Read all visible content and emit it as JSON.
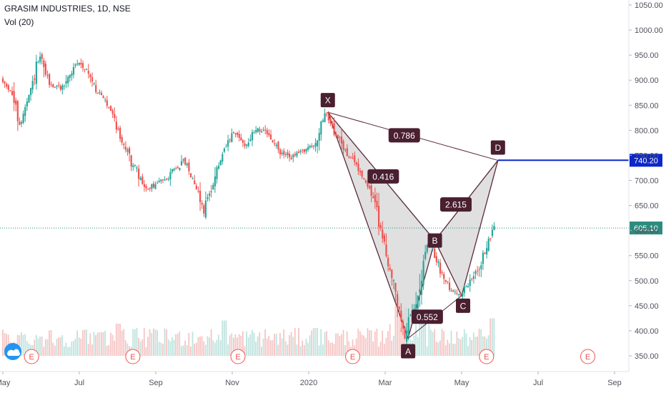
{
  "header": {
    "symbol": "GRASIM INDUSTRIES, 1D, NSE",
    "indicator": "Vol (20)"
  },
  "colors": {
    "up": "#26a69a",
    "down": "#ef5350",
    "pattern_fill": "#d6d6d6",
    "pattern_line": "#5b2a3a",
    "label_bg": "#4a1f30",
    "target_line": "#0d27c9",
    "price_line": "#2a8c7f",
    "earnings": "#ef5350"
  },
  "chart_data": {
    "type": "candlestick",
    "title": "GRASIM INDUSTRIES, 1D, NSE",
    "ylim": [
      325,
      1070
    ],
    "y_ticks": [
      "1050.00",
      "1000.00",
      "950.00",
      "900.00",
      "850.00",
      "800.00",
      "750.00",
      "700.00",
      "650.00",
      "600.00",
      "550.00",
      "500.00",
      "450.00",
      "400.00",
      "350.00"
    ],
    "x_ticks": [
      {
        "label": "May",
        "t": 0.0
      },
      {
        "label": "Jul",
        "t": 2.0
      },
      {
        "label": "Sep",
        "t": 4.0
      },
      {
        "label": "Nov",
        "t": 6.0
      },
      {
        "label": "2020",
        "t": 8.0
      },
      {
        "label": "Mar",
        "t": 10.0
      },
      {
        "label": "May",
        "t": 12.0
      },
      {
        "label": "Jul",
        "t": 14.0
      },
      {
        "label": "Sep",
        "t": 16.0
      }
    ],
    "price_path": [
      [
        0.0,
        900
      ],
      [
        0.25,
        880
      ],
      [
        0.5,
        810
      ],
      [
        0.75,
        870
      ],
      [
        1.0,
        945
      ],
      [
        1.3,
        890
      ],
      [
        1.6,
        885
      ],
      [
        2.0,
        935
      ],
      [
        2.2,
        925
      ],
      [
        2.5,
        880
      ],
      [
        2.9,
        840
      ],
      [
        3.1,
        790
      ],
      [
        3.4,
        740
      ],
      [
        3.8,
        680
      ],
      [
        4.2,
        700
      ],
      [
        4.5,
        720
      ],
      [
        4.8,
        740
      ],
      [
        5.1,
        690
      ],
      [
        5.3,
        640
      ],
      [
        5.6,
        710
      ],
      [
        5.9,
        770
      ],
      [
        6.1,
        795
      ],
      [
        6.4,
        770
      ],
      [
        6.7,
        805
      ],
      [
        7.0,
        790
      ],
      [
        7.3,
        755
      ],
      [
        7.6,
        745
      ],
      [
        7.9,
        760
      ],
      [
        8.2,
        770
      ],
      [
        8.5,
        835
      ],
      [
        8.7,
        800
      ],
      [
        9.0,
        760
      ],
      [
        9.3,
        730
      ],
      [
        9.6,
        690
      ],
      [
        9.8,
        650
      ],
      [
        10.0,
        580
      ],
      [
        10.3,
        480
      ],
      [
        10.55,
        390
      ],
      [
        10.8,
        450
      ],
      [
        11.0,
        520
      ],
      [
        11.2,
        580
      ],
      [
        11.5,
        520
      ],
      [
        11.8,
        480
      ],
      [
        12.0,
        470
      ],
      [
        12.3,
        500
      ],
      [
        12.6,
        545
      ],
      [
        12.9,
        605
      ]
    ],
    "volume_scale_max": 100,
    "volume_events": [
      {
        "t": 5.8,
        "v": 33
      },
      {
        "t": 8.2,
        "v": 26
      },
      {
        "t": 10.3,
        "v": 42
      },
      {
        "t": 10.5,
        "v": 38
      },
      {
        "t": 11.0,
        "v": 30
      },
      {
        "t": 12.8,
        "v": 35
      },
      {
        "t": 3.0,
        "v": 30
      },
      {
        "t": 2.6,
        "v": 22
      }
    ],
    "harmonic_pattern": {
      "points": {
        "X": {
          "t": 8.5,
          "price": 836
        },
        "A": {
          "t": 10.6,
          "price": 385
        },
        "B": {
          "t": 11.3,
          "price": 580
        },
        "C": {
          "t": 12.0,
          "price": 470
        },
        "D": {
          "t": 12.95,
          "price": 740
        }
      },
      "ratios": [
        {
          "label": "0.786",
          "t": 10.5,
          "price": 790
        },
        {
          "label": "0.416",
          "t": 9.95,
          "price": 708
        },
        {
          "label": "2.615",
          "t": 11.85,
          "price": 652
        },
        {
          "label": "0.552",
          "t": 11.1,
          "price": 428
        }
      ]
    },
    "price_levels": [
      {
        "label": "740.20",
        "price": 740.2,
        "kind": "target"
      },
      {
        "label": "605.10",
        "price": 605.1,
        "kind": "last"
      }
    ],
    "earnings_markers": [
      0.75,
      3.4,
      6.15,
      9.15,
      12.65,
      15.3
    ],
    "earnings_label": "E",
    "grid": false
  }
}
